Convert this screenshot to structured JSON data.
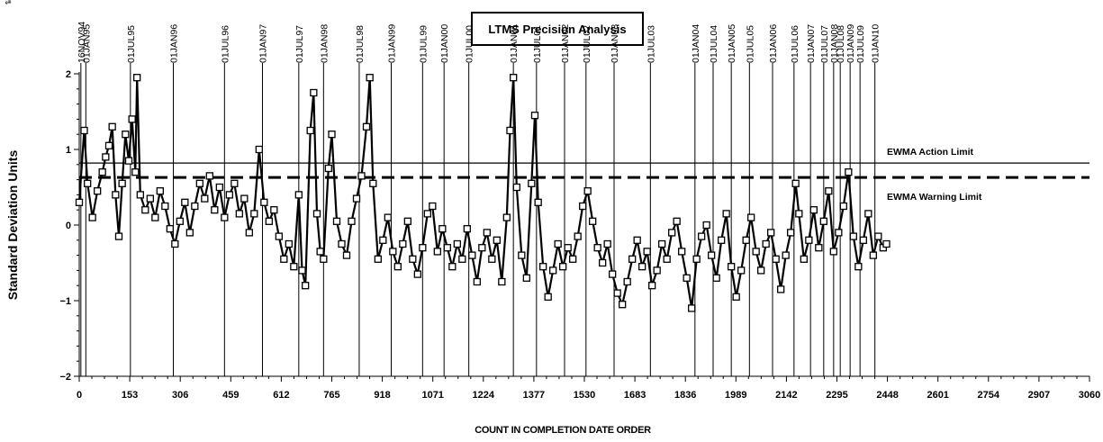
{
  "corner_text": "ᵉⁱⁱⁱ",
  "chart_data": {
    "type": "scatter",
    "title": "LTMS Precision Analysis",
    "xlabel": "COUNT IN COMPLETION DATE ORDER",
    "ylabel": "Standard Deviation Units",
    "xlim": [
      0,
      3060
    ],
    "ylim": [
      -2,
      2
    ],
    "x_ticks": [
      0,
      153,
      306,
      459,
      612,
      765,
      918,
      1071,
      1224,
      1377,
      1530,
      1683,
      1836,
      1989,
      2142,
      2295,
      2448,
      2601,
      2754,
      2907,
      3060
    ],
    "y_ticks": [
      -2,
      -1,
      0,
      1,
      2
    ],
    "reference_lines": [
      {
        "label": "EWMA Action Limit",
        "y": 0.82,
        "style": "solid"
      },
      {
        "label": "EWMA Warning Limit",
        "y": 0.63,
        "style": "dashed"
      }
    ],
    "date_markers": [
      {
        "label": "16NOV94",
        "x": 5
      },
      {
        "label": "01JAN95",
        "x": 20
      },
      {
        "label": "01JUL95",
        "x": 155
      },
      {
        "label": "01JAN96",
        "x": 285
      },
      {
        "label": "01JUL96",
        "x": 440
      },
      {
        "label": "01JAN97",
        "x": 555
      },
      {
        "label": "01JUL97",
        "x": 665
      },
      {
        "label": "01JAN98",
        "x": 740
      },
      {
        "label": "01JUL98",
        "x": 848
      },
      {
        "label": "01JAN99",
        "x": 945
      },
      {
        "label": "01JUL99",
        "x": 1040
      },
      {
        "label": "01JAN00",
        "x": 1105
      },
      {
        "label": "01JUL00",
        "x": 1180
      },
      {
        "label": "01JAN01",
        "x": 1315
      },
      {
        "label": "01JUL01",
        "x": 1385
      },
      {
        "label": "01JAN02",
        "x": 1470
      },
      {
        "label": "01JUL02",
        "x": 1535
      },
      {
        "label": "01JAN03",
        "x": 1620
      },
      {
        "label": "01JUL03",
        "x": 1730
      },
      {
        "label": "01JAN04",
        "x": 1865
      },
      {
        "label": "01JUL04",
        "x": 1920
      },
      {
        "label": "01JAN05",
        "x": 1975
      },
      {
        "label": "01JUL05",
        "x": 2030
      },
      {
        "label": "01JAN06",
        "x": 2100
      },
      {
        "label": "01JUL06",
        "x": 2165
      },
      {
        "label": "01JAN07",
        "x": 2215
      },
      {
        "label": "01JUL07",
        "x": 2255
      },
      {
        "label": "01JAN08",
        "x": 2285
      },
      {
        "label": "01JUL08",
        "x": 2305
      },
      {
        "label": "01JAN09",
        "x": 2335
      },
      {
        "label": "01JUL09",
        "x": 2365
      },
      {
        "label": "01JAN10",
        "x": 2410
      }
    ],
    "series": [
      {
        "values": [
          [
            0,
            0.3
          ],
          [
            15,
            1.25
          ],
          [
            25,
            0.55
          ],
          [
            40,
            0.1
          ],
          [
            55,
            0.45
          ],
          [
            70,
            0.7
          ],
          [
            80,
            0.9
          ],
          [
            90,
            1.05
          ],
          [
            100,
            1.3
          ],
          [
            110,
            0.4
          ],
          [
            120,
            -0.15
          ],
          [
            130,
            0.55
          ],
          [
            140,
            1.2
          ],
          [
            150,
            0.85
          ],
          [
            160,
            1.4
          ],
          [
            170,
            0.7
          ],
          [
            175,
            1.95
          ],
          [
            185,
            0.4
          ],
          [
            200,
            0.2
          ],
          [
            215,
            0.35
          ],
          [
            230,
            0.1
          ],
          [
            245,
            0.45
          ],
          [
            260,
            0.25
          ],
          [
            275,
            -0.05
          ],
          [
            290,
            -0.25
          ],
          [
            305,
            0.05
          ],
          [
            320,
            0.3
          ],
          [
            335,
            -0.1
          ],
          [
            350,
            0.25
          ],
          [
            365,
            0.55
          ],
          [
            380,
            0.35
          ],
          [
            395,
            0.65
          ],
          [
            410,
            0.2
          ],
          [
            425,
            0.5
          ],
          [
            440,
            0.1
          ],
          [
            455,
            0.4
          ],
          [
            470,
            0.55
          ],
          [
            485,
            0.15
          ],
          [
            500,
            0.35
          ],
          [
            515,
            -0.1
          ],
          [
            530,
            0.15
          ],
          [
            545,
            1.0
          ],
          [
            560,
            0.3
          ],
          [
            575,
            0.05
          ],
          [
            590,
            0.2
          ],
          [
            605,
            -0.15
          ],
          [
            620,
            -0.45
          ],
          [
            635,
            -0.25
          ],
          [
            650,
            -0.55
          ],
          [
            665,
            0.4
          ],
          [
            675,
            -0.6
          ],
          [
            685,
            -0.8
          ],
          [
            700,
            1.25
          ],
          [
            710,
            1.75
          ],
          [
            720,
            0.15
          ],
          [
            730,
            -0.35
          ],
          [
            740,
            -0.45
          ],
          [
            755,
            0.75
          ],
          [
            765,
            1.2
          ],
          [
            780,
            0.05
          ],
          [
            795,
            -0.25
          ],
          [
            810,
            -0.4
          ],
          [
            825,
            0.05
          ],
          [
            840,
            0.35
          ],
          [
            855,
            0.65
          ],
          [
            870,
            1.3
          ],
          [
            880,
            1.95
          ],
          [
            890,
            0.55
          ],
          [
            905,
            -0.45
          ],
          [
            920,
            -0.2
          ],
          [
            935,
            0.1
          ],
          [
            950,
            -0.35
          ],
          [
            965,
            -0.55
          ],
          [
            980,
            -0.25
          ],
          [
            995,
            0.05
          ],
          [
            1010,
            -0.45
          ],
          [
            1025,
            -0.65
          ],
          [
            1040,
            -0.3
          ],
          [
            1055,
            0.15
          ],
          [
            1070,
            0.25
          ],
          [
            1085,
            -0.35
          ],
          [
            1100,
            -0.05
          ],
          [
            1115,
            -0.3
          ],
          [
            1130,
            -0.55
          ],
          [
            1145,
            -0.25
          ],
          [
            1160,
            -0.45
          ],
          [
            1175,
            -0.05
          ],
          [
            1190,
            -0.4
          ],
          [
            1205,
            -0.75
          ],
          [
            1220,
            -0.3
          ],
          [
            1235,
            -0.1
          ],
          [
            1250,
            -0.45
          ],
          [
            1265,
            -0.2
          ],
          [
            1280,
            -0.75
          ],
          [
            1295,
            0.1
          ],
          [
            1305,
            1.25
          ],
          [
            1315,
            1.95
          ],
          [
            1325,
            0.5
          ],
          [
            1340,
            -0.4
          ],
          [
            1355,
            -0.7
          ],
          [
            1370,
            0.55
          ],
          [
            1380,
            1.45
          ],
          [
            1390,
            0.3
          ],
          [
            1405,
            -0.55
          ],
          [
            1420,
            -0.95
          ],
          [
            1435,
            -0.6
          ],
          [
            1450,
            -0.25
          ],
          [
            1465,
            -0.55
          ],
          [
            1480,
            -0.3
          ],
          [
            1495,
            -0.45
          ],
          [
            1510,
            -0.15
          ],
          [
            1525,
            0.25
          ],
          [
            1540,
            0.45
          ],
          [
            1555,
            0.05
          ],
          [
            1570,
            -0.3
          ],
          [
            1585,
            -0.5
          ],
          [
            1600,
            -0.25
          ],
          [
            1615,
            -0.65
          ],
          [
            1630,
            -0.9
          ],
          [
            1645,
            -1.05
          ],
          [
            1660,
            -0.75
          ],
          [
            1675,
            -0.45
          ],
          [
            1690,
            -0.2
          ],
          [
            1705,
            -0.55
          ],
          [
            1720,
            -0.35
          ],
          [
            1735,
            -0.8
          ],
          [
            1750,
            -0.6
          ],
          [
            1765,
            -0.25
          ],
          [
            1780,
            -0.45
          ],
          [
            1795,
            -0.1
          ],
          [
            1810,
            0.05
          ],
          [
            1825,
            -0.35
          ],
          [
            1840,
            -0.7
          ],
          [
            1855,
            -1.1
          ],
          [
            1870,
            -0.45
          ],
          [
            1885,
            -0.15
          ],
          [
            1900,
            0.0
          ],
          [
            1915,
            -0.4
          ],
          [
            1930,
            -0.7
          ],
          [
            1945,
            -0.2
          ],
          [
            1960,
            0.15
          ],
          [
            1975,
            -0.55
          ],
          [
            1990,
            -0.95
          ],
          [
            2005,
            -0.6
          ],
          [
            2020,
            -0.2
          ],
          [
            2035,
            0.1
          ],
          [
            2050,
            -0.35
          ],
          [
            2065,
            -0.6
          ],
          [
            2080,
            -0.25
          ],
          [
            2095,
            -0.1
          ],
          [
            2110,
            -0.45
          ],
          [
            2125,
            -0.85
          ],
          [
            2140,
            -0.4
          ],
          [
            2155,
            -0.1
          ],
          [
            2170,
            0.55
          ],
          [
            2180,
            0.15
          ],
          [
            2195,
            -0.45
          ],
          [
            2210,
            -0.2
          ],
          [
            2225,
            0.2
          ],
          [
            2240,
            -0.3
          ],
          [
            2255,
            0.05
          ],
          [
            2270,
            0.45
          ],
          [
            2285,
            -0.35
          ],
          [
            2300,
            -0.1
          ],
          [
            2315,
            0.25
          ],
          [
            2330,
            0.7
          ],
          [
            2345,
            -0.15
          ],
          [
            2360,
            -0.55
          ],
          [
            2375,
            -0.2
          ],
          [
            2390,
            0.15
          ],
          [
            2405,
            -0.4
          ],
          [
            2420,
            -0.15
          ],
          [
            2435,
            -0.3
          ],
          [
            2445,
            -0.25
          ]
        ]
      }
    ]
  }
}
